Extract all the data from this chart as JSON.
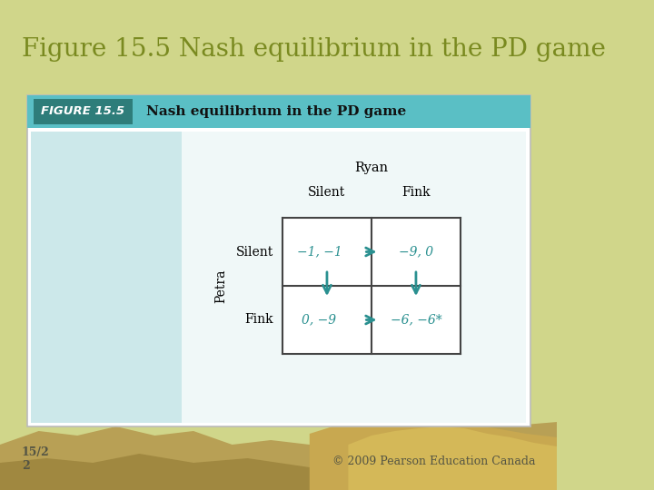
{
  "title": "Figure 15.5 Nash equilibrium in the PD game",
  "title_color": "#7a8a20",
  "title_fontsize": 20,
  "bg_color": "#d0d68a",
  "card_bg": "#ffffff",
  "header_bg": "#5abfc5",
  "header_label_bg": "#2e7d7a",
  "header_label_text": "FIGURE 15.5",
  "header_title": "Nash equilibrium in the PD game",
  "inner_bg": "#cce8ea",
  "inner_right_bg": "#f0f8f8",
  "grid_color": "#444444",
  "arrow_color": "#2a9090",
  "cell_text_color": "#2a9090",
  "player_row": "Petra",
  "player_col": "Ryan",
  "row_labels": [
    "Silent",
    "Fink"
  ],
  "col_labels": [
    "Silent",
    "Fink"
  ],
  "payoffs": [
    [
      "−1, −1",
      "−9, 0"
    ],
    [
      "0, −9",
      "−6, −6*"
    ]
  ],
  "footer_left": "15/2\n2",
  "footer_right": "© 2009 Pearson Education Canada",
  "footer_color": "#555544",
  "footer_fontsize": 9,
  "mountain_colors": [
    "#c8b870",
    "#b8a050",
    "#a08840",
    "#d0c080"
  ]
}
